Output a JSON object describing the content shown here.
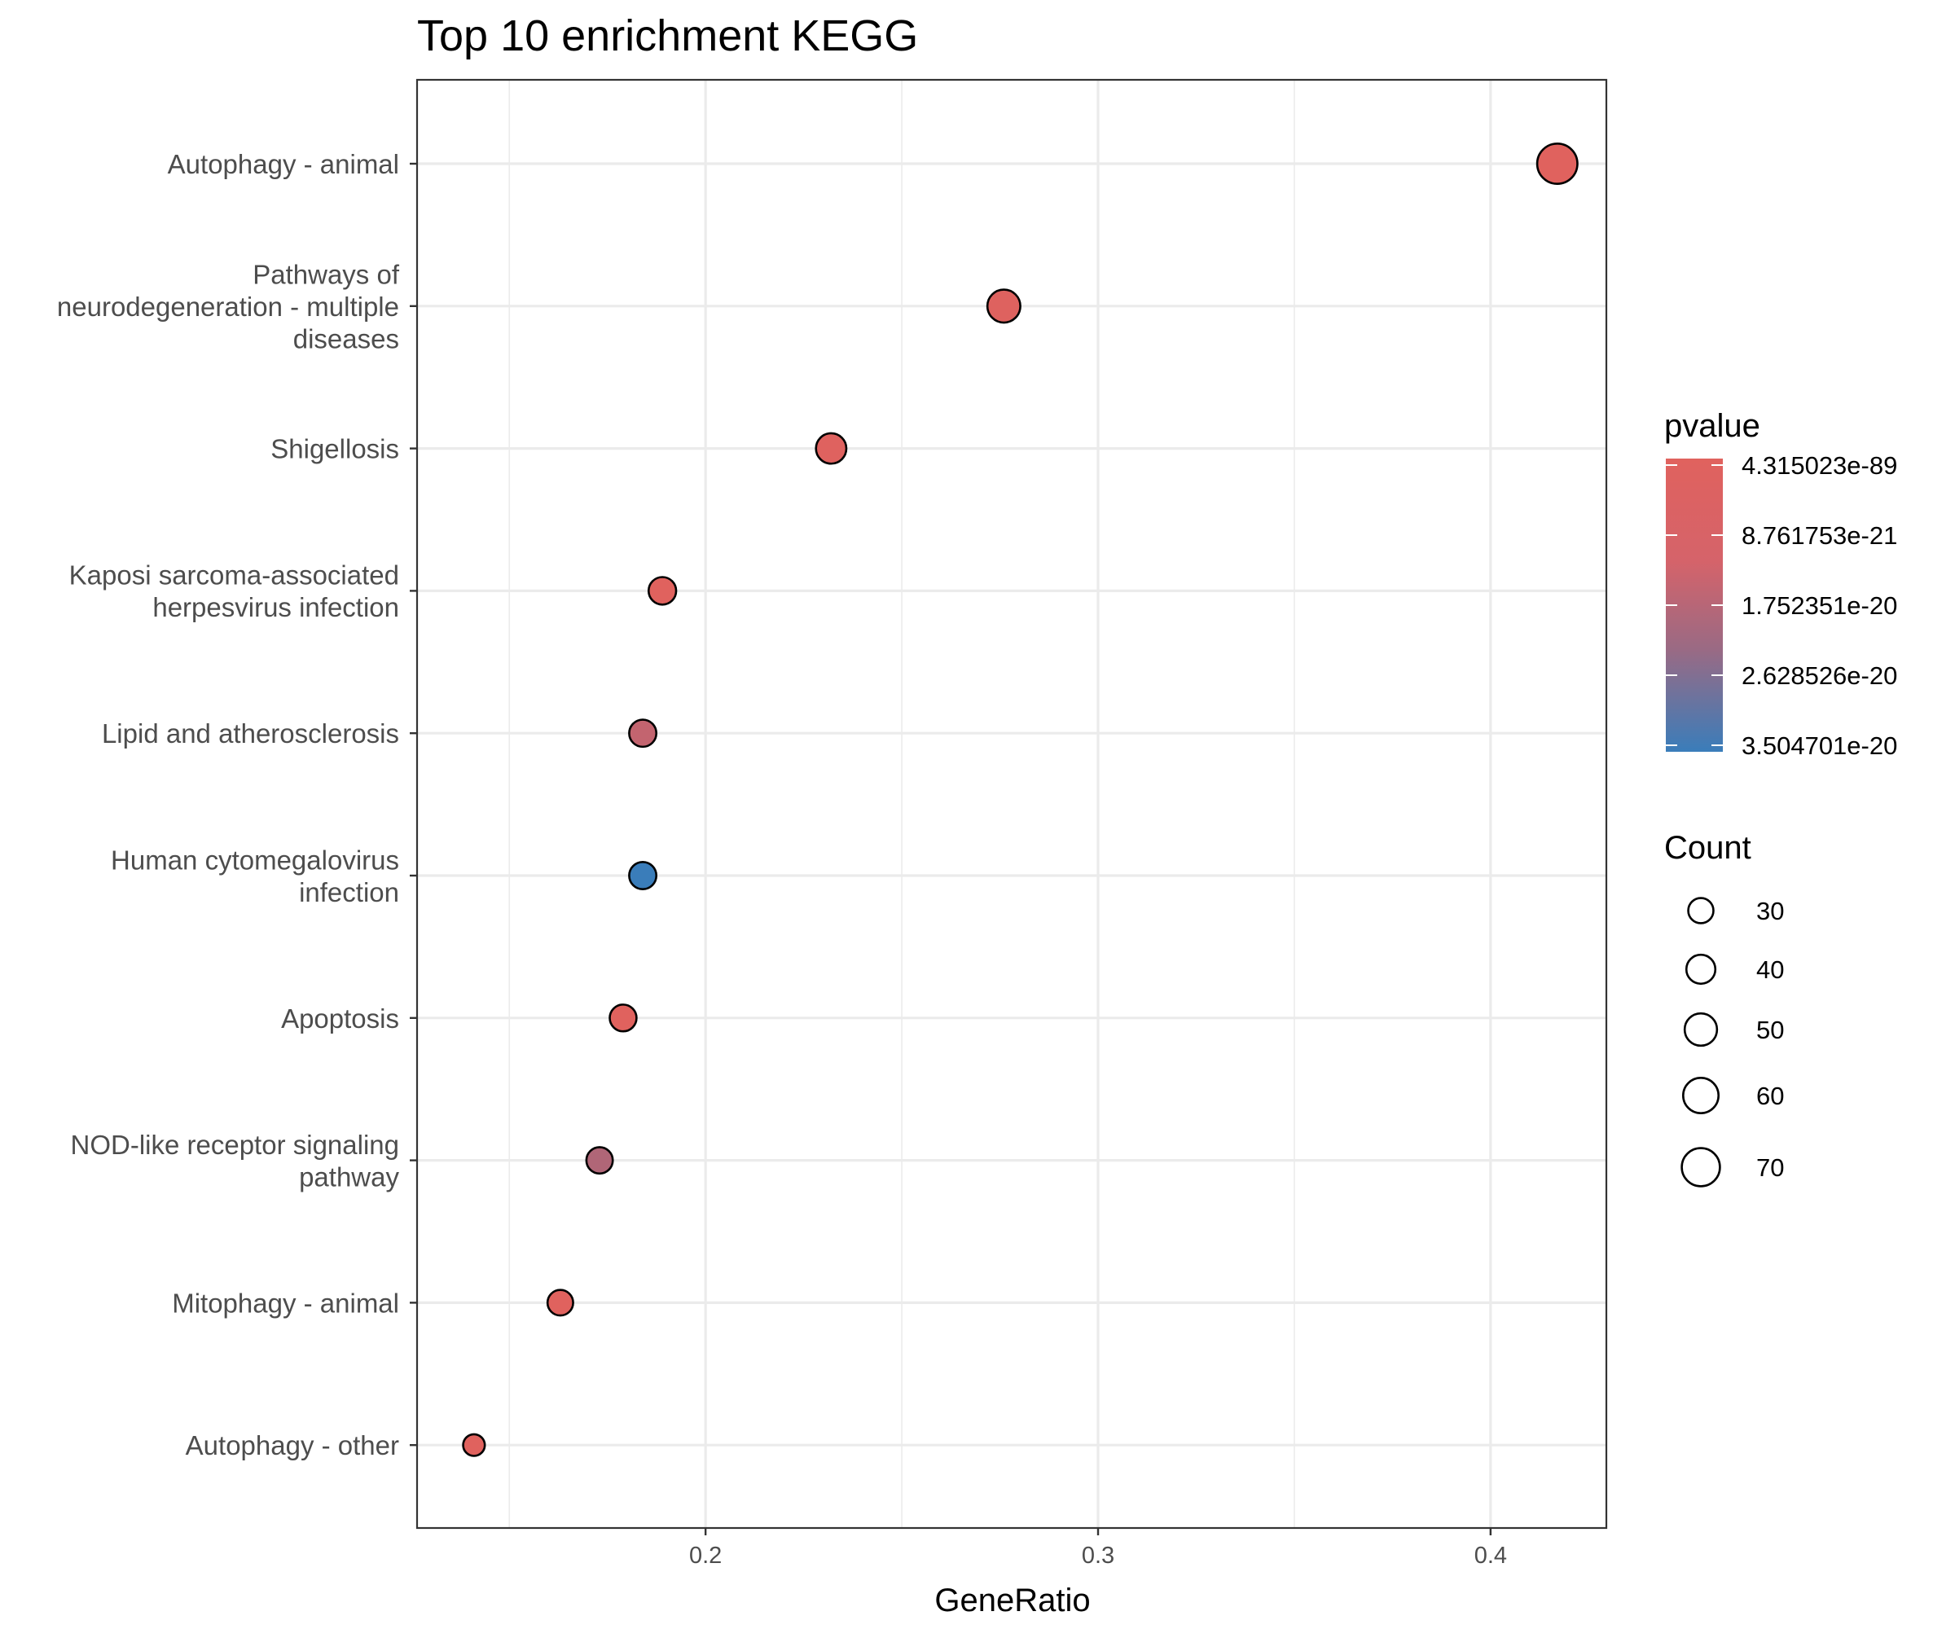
{
  "chart_data": {
    "type": "scatter",
    "title": "Top  10  enrichment KEGG",
    "xlabel": "GeneRatio",
    "ylabel": "",
    "xlim": [
      0.1265,
      0.4295
    ],
    "xticks": [
      0.2,
      0.3,
      0.4
    ],
    "xtick_labels": [
      "0.2",
      "0.3",
      "0.4"
    ],
    "xgrid_minor": [
      0.15,
      0.25,
      0.35
    ],
    "grid": true,
    "categories": [
      [
        "Autophagy - animal"
      ],
      [
        "Pathways of",
        "neurodegeneration - multiple",
        "diseases"
      ],
      [
        "Shigellosis"
      ],
      [
        "Kaposi sarcoma-associated",
        "herpesvirus infection"
      ],
      [
        "Lipid and atherosclerosis"
      ],
      [
        "Human cytomegalovirus",
        "infection"
      ],
      [
        "Apoptosis"
      ],
      [
        "NOD-like receptor signaling",
        "pathway"
      ],
      [
        "Mitophagy - animal"
      ],
      [
        "Autophagy - other"
      ]
    ],
    "points": [
      {
        "category": "Autophagy - animal",
        "gene_ratio": 0.417,
        "count": 78,
        "color": "#e0625e"
      },
      {
        "category": "Pathways of neurodegeneration - multiple diseases",
        "gene_ratio": 0.276,
        "count": 52,
        "color": "#de625f"
      },
      {
        "category": "Shigellosis",
        "gene_ratio": 0.232,
        "count": 44,
        "color": "#df625f"
      },
      {
        "category": "Kaposi sarcoma-associated herpesvirus infection",
        "gene_ratio": 0.189,
        "count": 36,
        "color": "#e0625e"
      },
      {
        "category": "Lipid and atherosclerosis",
        "gene_ratio": 0.184,
        "count": 35,
        "color": "#c3646f"
      },
      {
        "category": "Human cytomegalovirus infection",
        "gene_ratio": 0.184,
        "count": 35,
        "color": "#3a7dba"
      },
      {
        "category": "Apoptosis",
        "gene_ratio": 0.179,
        "count": 34,
        "color": "#e0625e"
      },
      {
        "category": "NOD-like receptor signaling pathway",
        "gene_ratio": 0.173,
        "count": 33,
        "color": "#b06677"
      },
      {
        "category": "Mitophagy - animal",
        "gene_ratio": 0.163,
        "count": 31,
        "color": "#e0625e"
      },
      {
        "category": "Autophagy - other",
        "gene_ratio": 0.141,
        "count": 22,
        "color": "#e0625e"
      }
    ],
    "legend_color": {
      "title": "pvalue",
      "placement": "right",
      "gradient_top": "#e0625e",
      "gradient_bottom": "#3a7dba",
      "labels": [
        "4.315023e-89",
        "8.761753e-21",
        "1.752351e-20",
        "2.628526e-20",
        "3.504701e-20"
      ]
    },
    "legend_size": {
      "title": "Count",
      "placement": "right",
      "values": [
        30,
        40,
        50,
        60,
        70
      ],
      "labels": [
        "30",
        "40",
        "50",
        "60",
        "70"
      ]
    }
  }
}
